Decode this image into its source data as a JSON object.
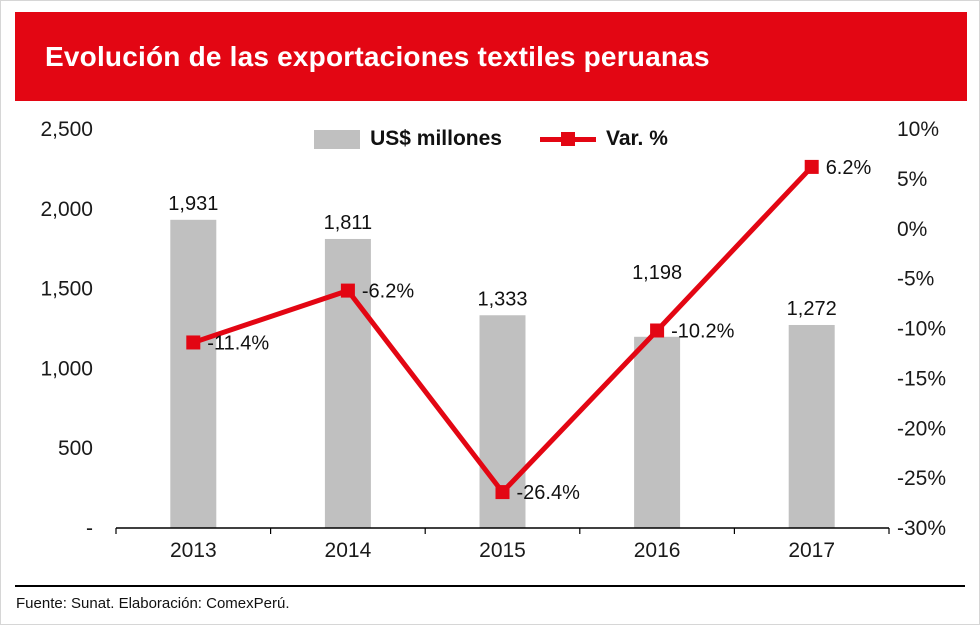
{
  "title": "Evolución de las exportaciones textiles peruanas",
  "footer": "Fuente: Sunat. Elaboración: ComexPerú.",
  "colors": {
    "banner": "#e30613",
    "bar": "#c0c0c0",
    "line": "#e30613",
    "marker": "#e30613",
    "axis_text": "#1a1a1a",
    "axis_line": "#000000"
  },
  "chart_data": {
    "type": "bar+line",
    "title": "Evolución de las exportaciones textiles peruanas",
    "categories": [
      "2013",
      "2014",
      "2015",
      "2016",
      "2017"
    ],
    "series": [
      {
        "name": "US$ millones",
        "type": "bar",
        "axis": "left",
        "values": [
          1931,
          1811,
          1333,
          1198,
          1272
        ],
        "labels": [
          "1,931",
          "1,811",
          "1,333",
          "1,198",
          "1,272"
        ]
      },
      {
        "name": "Var. %",
        "type": "line",
        "axis": "right",
        "values": [
          -11.4,
          -6.2,
          -26.4,
          -10.2,
          6.2
        ],
        "labels": [
          "-11.4%",
          "-6.2%",
          "-26.4%",
          "-10.2%",
          "6.2%"
        ]
      }
    ],
    "left_axis": {
      "min": 0,
      "max": 2500,
      "tick_values": [
        2500,
        2000,
        1500,
        1000,
        500,
        0
      ],
      "ticks": [
        "2,500",
        "2,000",
        "1,500",
        "1,000",
        "500",
        "-"
      ]
    },
    "right_axis": {
      "min": -30,
      "max": 10,
      "tick_values": [
        10,
        5,
        0,
        -5,
        -10,
        -15,
        -20,
        -25,
        -30
      ],
      "ticks": [
        "10%",
        "5%",
        "0%",
        "-5%",
        "-10%",
        "-15%",
        "-20%",
        "-25%",
        "-30%"
      ]
    },
    "legend": [
      "US$ millones",
      "Var. %"
    ],
    "legend_position": "top-center",
    "grid": false,
    "bar_label_dy": [
      0,
      0,
      0,
      -48,
      0
    ]
  }
}
